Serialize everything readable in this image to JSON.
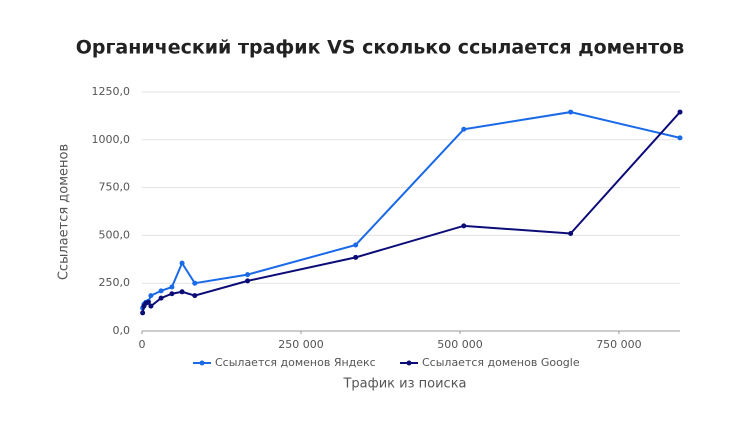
{
  "chart_data": {
    "type": "line",
    "title": "Органический трафик VS сколько ссылается доментов",
    "x_label": "Трафик из поиска",
    "y_label": "Ссылается доменов",
    "x": [
      1000,
      3000,
      6000,
      10000,
      14000,
      30000,
      47000,
      63000,
      83000,
      166000,
      336000,
      506000,
      674000,
      846000
    ],
    "series": [
      {
        "name": "Ссылается доменов Яндекс",
        "color": "#1a6ae8",
        "values": [
          120,
          140,
          150,
          155,
          185,
          210,
          230,
          355,
          250,
          295,
          450,
          1055,
          1145,
          1010
        ]
      },
      {
        "name": "Ссылается доменов Google",
        "color": "#0c0c78",
        "values": [
          95,
          130,
          145,
          150,
          130,
          172,
          195,
          205,
          185,
          262,
          385,
          550,
          510,
          1145
        ]
      }
    ],
    "xlim": [
      0,
      846000
    ],
    "ylim": [
      0,
      1250
    ],
    "xticks": [
      0,
      {
        "value": 250000,
        "label": "250 000"
      },
      {
        "value": 500000,
        "label": "500 000"
      },
      {
        "value": 750000,
        "label": "750 000"
      }
    ],
    "yticks": [
      {
        "value": 0,
        "label": "0,0"
      },
      {
        "value": 250,
        "label": "250,0"
      },
      {
        "value": 500,
        "label": "500,0"
      },
      {
        "value": 750,
        "label": "750,0"
      },
      {
        "value": 1000,
        "label": "1000,0"
      },
      {
        "value": 1250,
        "label": "1250,0"
      }
    ],
    "grid": true,
    "legend": "bottom"
  }
}
